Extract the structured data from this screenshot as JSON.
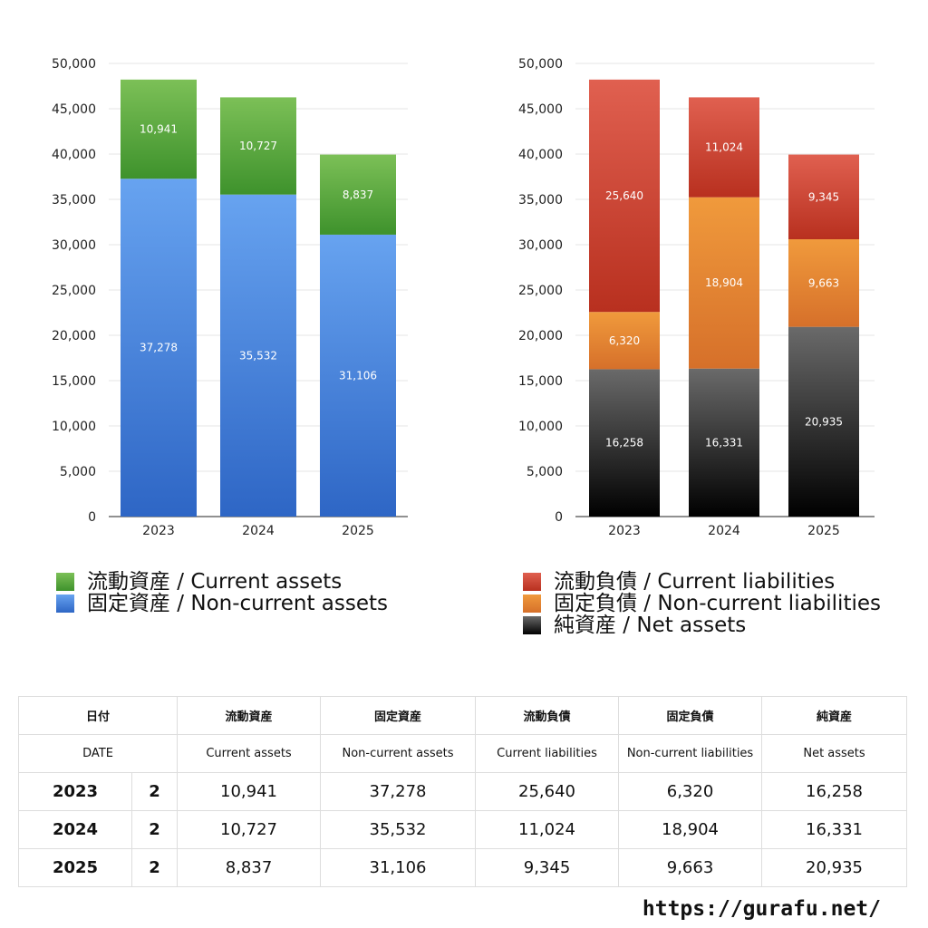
{
  "chart_data": [
    {
      "type": "bar",
      "stacked": true,
      "categories": [
        "2023",
        "2024",
        "2025"
      ],
      "ylim": [
        0,
        50000
      ],
      "yticks": [
        "0",
        "5,000",
        "10,000",
        "15,000",
        "20,000",
        "25,000",
        "30,000",
        "35,000",
        "40,000",
        "45,000",
        "50,000"
      ],
      "grid": true,
      "legend_position": "bottom",
      "series": [
        {
          "name": "固定資産 / Non-current assets",
          "values": [
            37278,
            35532,
            31106
          ],
          "labels": [
            "37,278",
            "35,532",
            "31,106"
          ],
          "color_top": "#67a3f0",
          "color_bottom": "#2e66c5"
        },
        {
          "name": "流動資産 / Current assets",
          "values": [
            10941,
            10727,
            8837
          ],
          "labels": [
            "10,941",
            "10,727",
            "8,837"
          ],
          "color_top": "#7cc057",
          "color_bottom": "#3e922c"
        }
      ]
    },
    {
      "type": "bar",
      "stacked": true,
      "categories": [
        "2023",
        "2024",
        "2025"
      ],
      "ylim": [
        0,
        50000
      ],
      "yticks": [
        "0",
        "5,000",
        "10,000",
        "15,000",
        "20,000",
        "25,000",
        "30,000",
        "35,000",
        "40,000",
        "45,000",
        "50,000"
      ],
      "grid": true,
      "legend_position": "bottom",
      "series": [
        {
          "name": "純資産 / Net assets",
          "values": [
            16258,
            16331,
            20935
          ],
          "labels": [
            "16,258",
            "16,331",
            "20,935"
          ],
          "color_top": "#6a6a6a",
          "color_bottom": "#000000"
        },
        {
          "name": "固定負債 / Non-current liabilities",
          "values": [
            6320,
            18904,
            9663
          ],
          "labels": [
            "6,320",
            "18,904",
            "9,663"
          ],
          "color_top": "#f09a3c",
          "color_bottom": "#d6702a"
        },
        {
          "name": "流動負債 / Current liabilities",
          "values": [
            25640,
            11024,
            9345
          ],
          "labels": [
            "25,640",
            "11,024",
            "9,345"
          ],
          "color_top": "#e06050",
          "color_bottom": "#b8301f"
        }
      ]
    }
  ],
  "legend_left": [
    {
      "label": "流動資産 / Current assets"
    },
    {
      "label": "固定資産 / Non-current assets"
    }
  ],
  "legend_right": [
    {
      "label": "流動負債 / Current liabilities"
    },
    {
      "label": "固定負債 / Non-current liabilities"
    },
    {
      "label": "純資産 / Net assets"
    }
  ],
  "table": {
    "header_ja": [
      "日付",
      "流動資産",
      "固定資産",
      "流動負債",
      "固定負債",
      "純資産"
    ],
    "header_en": [
      "DATE",
      "Current assets",
      "Non-current assets",
      "Current liabilities",
      "Non-current liabilities",
      "Net assets"
    ],
    "rows": [
      {
        "year": "2023",
        "count": "2",
        "cells": [
          "10,941",
          "37,278",
          "25,640",
          "6,320",
          "16,258"
        ]
      },
      {
        "year": "2024",
        "count": "2",
        "cells": [
          "10,727",
          "35,532",
          "11,024",
          "18,904",
          "16,331"
        ]
      },
      {
        "year": "2025",
        "count": "2",
        "cells": [
          "8,837",
          "31,106",
          "9,345",
          "9,663",
          "20,935"
        ]
      }
    ]
  },
  "source": "https://gurafu.net/"
}
